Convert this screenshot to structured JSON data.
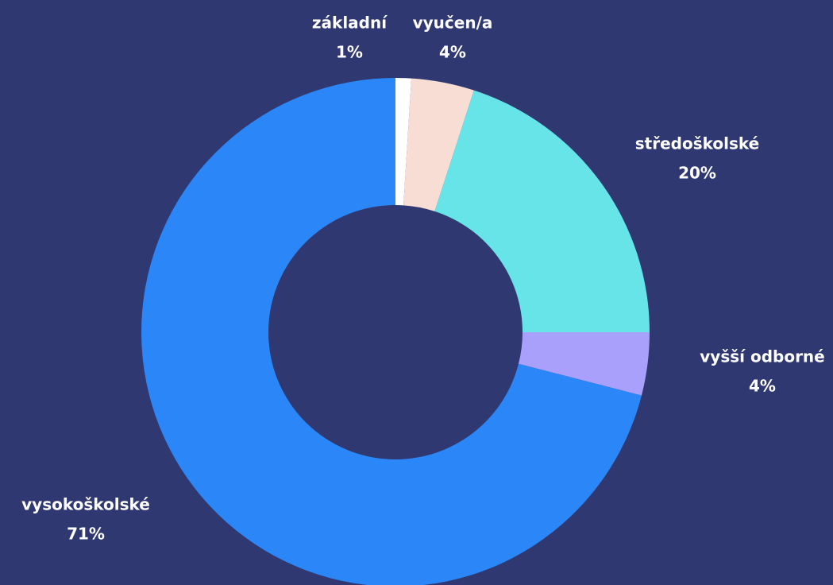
{
  "chart_data": {
    "type": "donut",
    "categories": [
      "základní",
      "vyučen/a",
      "středoškolské",
      "vyšší odborné",
      "vysokoškolské"
    ],
    "values": [
      1,
      4,
      20,
      4,
      71
    ],
    "value_labels": [
      "1%",
      "4%",
      "20%",
      "4%",
      "71%"
    ],
    "colors": [
      "#ffffff",
      "#f7ddd3",
      "#67e4e8",
      "#a8a0fb",
      "#2b87f8"
    ]
  }
}
